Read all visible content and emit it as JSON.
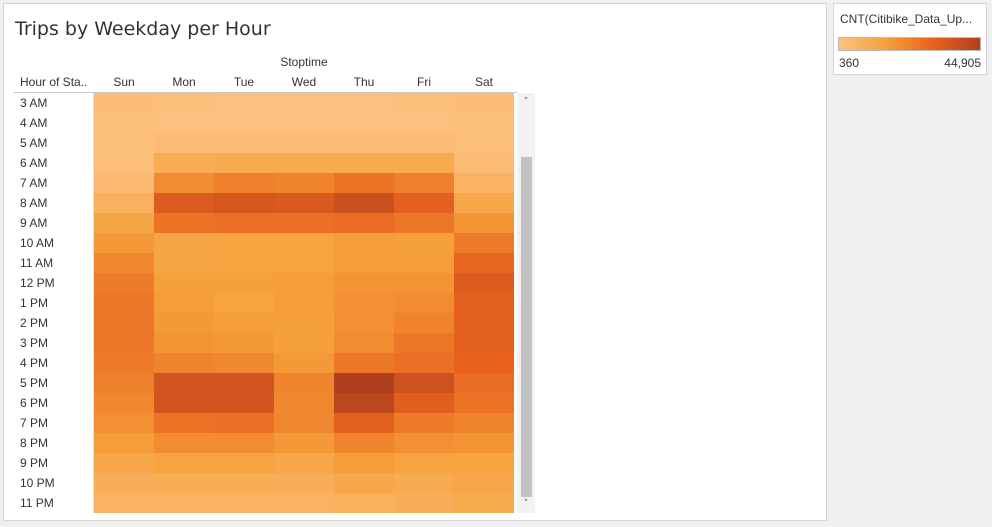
{
  "title": "Trips by Weekday per Hour",
  "legend": {
    "title": "CNT(Citibike_Data_Up...",
    "min_label": "360",
    "max_label": "44,905",
    "colors": [
      "#fdc282",
      "#f5a03a",
      "#e8621e",
      "#b0401d"
    ]
  },
  "chart_data": {
    "type": "heatmap",
    "title": "Trips by Weekday per Hour",
    "column_axis_title": "Stoptime",
    "row_axis_title": "Hour of Sta..",
    "columns": [
      "Sun",
      "Mon",
      "Tue",
      "Wed",
      "Thu",
      "Fri",
      "Sat"
    ],
    "rows": [
      "3 AM",
      "4 AM",
      "5 AM",
      "6 AM",
      "7 AM",
      "8 AM",
      "9 AM",
      "10 AM",
      "11 AM",
      "12 PM",
      "1 PM",
      "2 PM",
      "3 PM",
      "4 PM",
      "5 PM",
      "6 PM",
      "7 PM",
      "8 PM",
      "9 PM",
      "10 PM",
      "11 PM"
    ],
    "values": [
      [
        2500,
        1500,
        1200,
        1200,
        1200,
        1300,
        2500
      ],
      [
        1800,
        1200,
        900,
        900,
        900,
        1000,
        1800
      ],
      [
        1500,
        3000,
        3000,
        3000,
        3000,
        3000,
        1800
      ],
      [
        1800,
        10000,
        11000,
        11000,
        11000,
        11000,
        3500
      ],
      [
        4000,
        20000,
        23000,
        22000,
        26000,
        23000,
        7000
      ],
      [
        8000,
        33000,
        35000,
        34000,
        38000,
        31000,
        12000
      ],
      [
        13000,
        26000,
        27000,
        27000,
        28000,
        25000,
        18000
      ],
      [
        17000,
        13000,
        14000,
        14000,
        16000,
        15000,
        24000
      ],
      [
        21000,
        13000,
        14000,
        14000,
        16000,
        16000,
        29000
      ],
      [
        24000,
        15000,
        15000,
        16000,
        18000,
        18000,
        33000
      ],
      [
        25000,
        16000,
        14000,
        16000,
        19000,
        20000,
        31000
      ],
      [
        25000,
        17000,
        16000,
        15000,
        19000,
        22000,
        31000
      ],
      [
        25000,
        18000,
        17000,
        15000,
        20000,
        25000,
        31000
      ],
      [
        24000,
        22000,
        21000,
        17000,
        25000,
        27000,
        30000
      ],
      [
        23000,
        36000,
        36000,
        22000,
        44905,
        37000,
        28000
      ],
      [
        21000,
        36000,
        36000,
        21000,
        42000,
        32000,
        26000
      ],
      [
        19000,
        26000,
        27000,
        21000,
        31000,
        24000,
        22000
      ],
      [
        16000,
        20000,
        20000,
        17000,
        22000,
        19000,
        18000
      ],
      [
        12000,
        14000,
        14000,
        12000,
        16000,
        14000,
        14000
      ],
      [
        9000,
        10000,
        10000,
        9000,
        12000,
        11000,
        12000
      ],
      [
        7000,
        7000,
        7000,
        7000,
        8000,
        9000,
        11000
      ]
    ],
    "value_range": [
      360,
      44905
    ],
    "grid": false
  }
}
